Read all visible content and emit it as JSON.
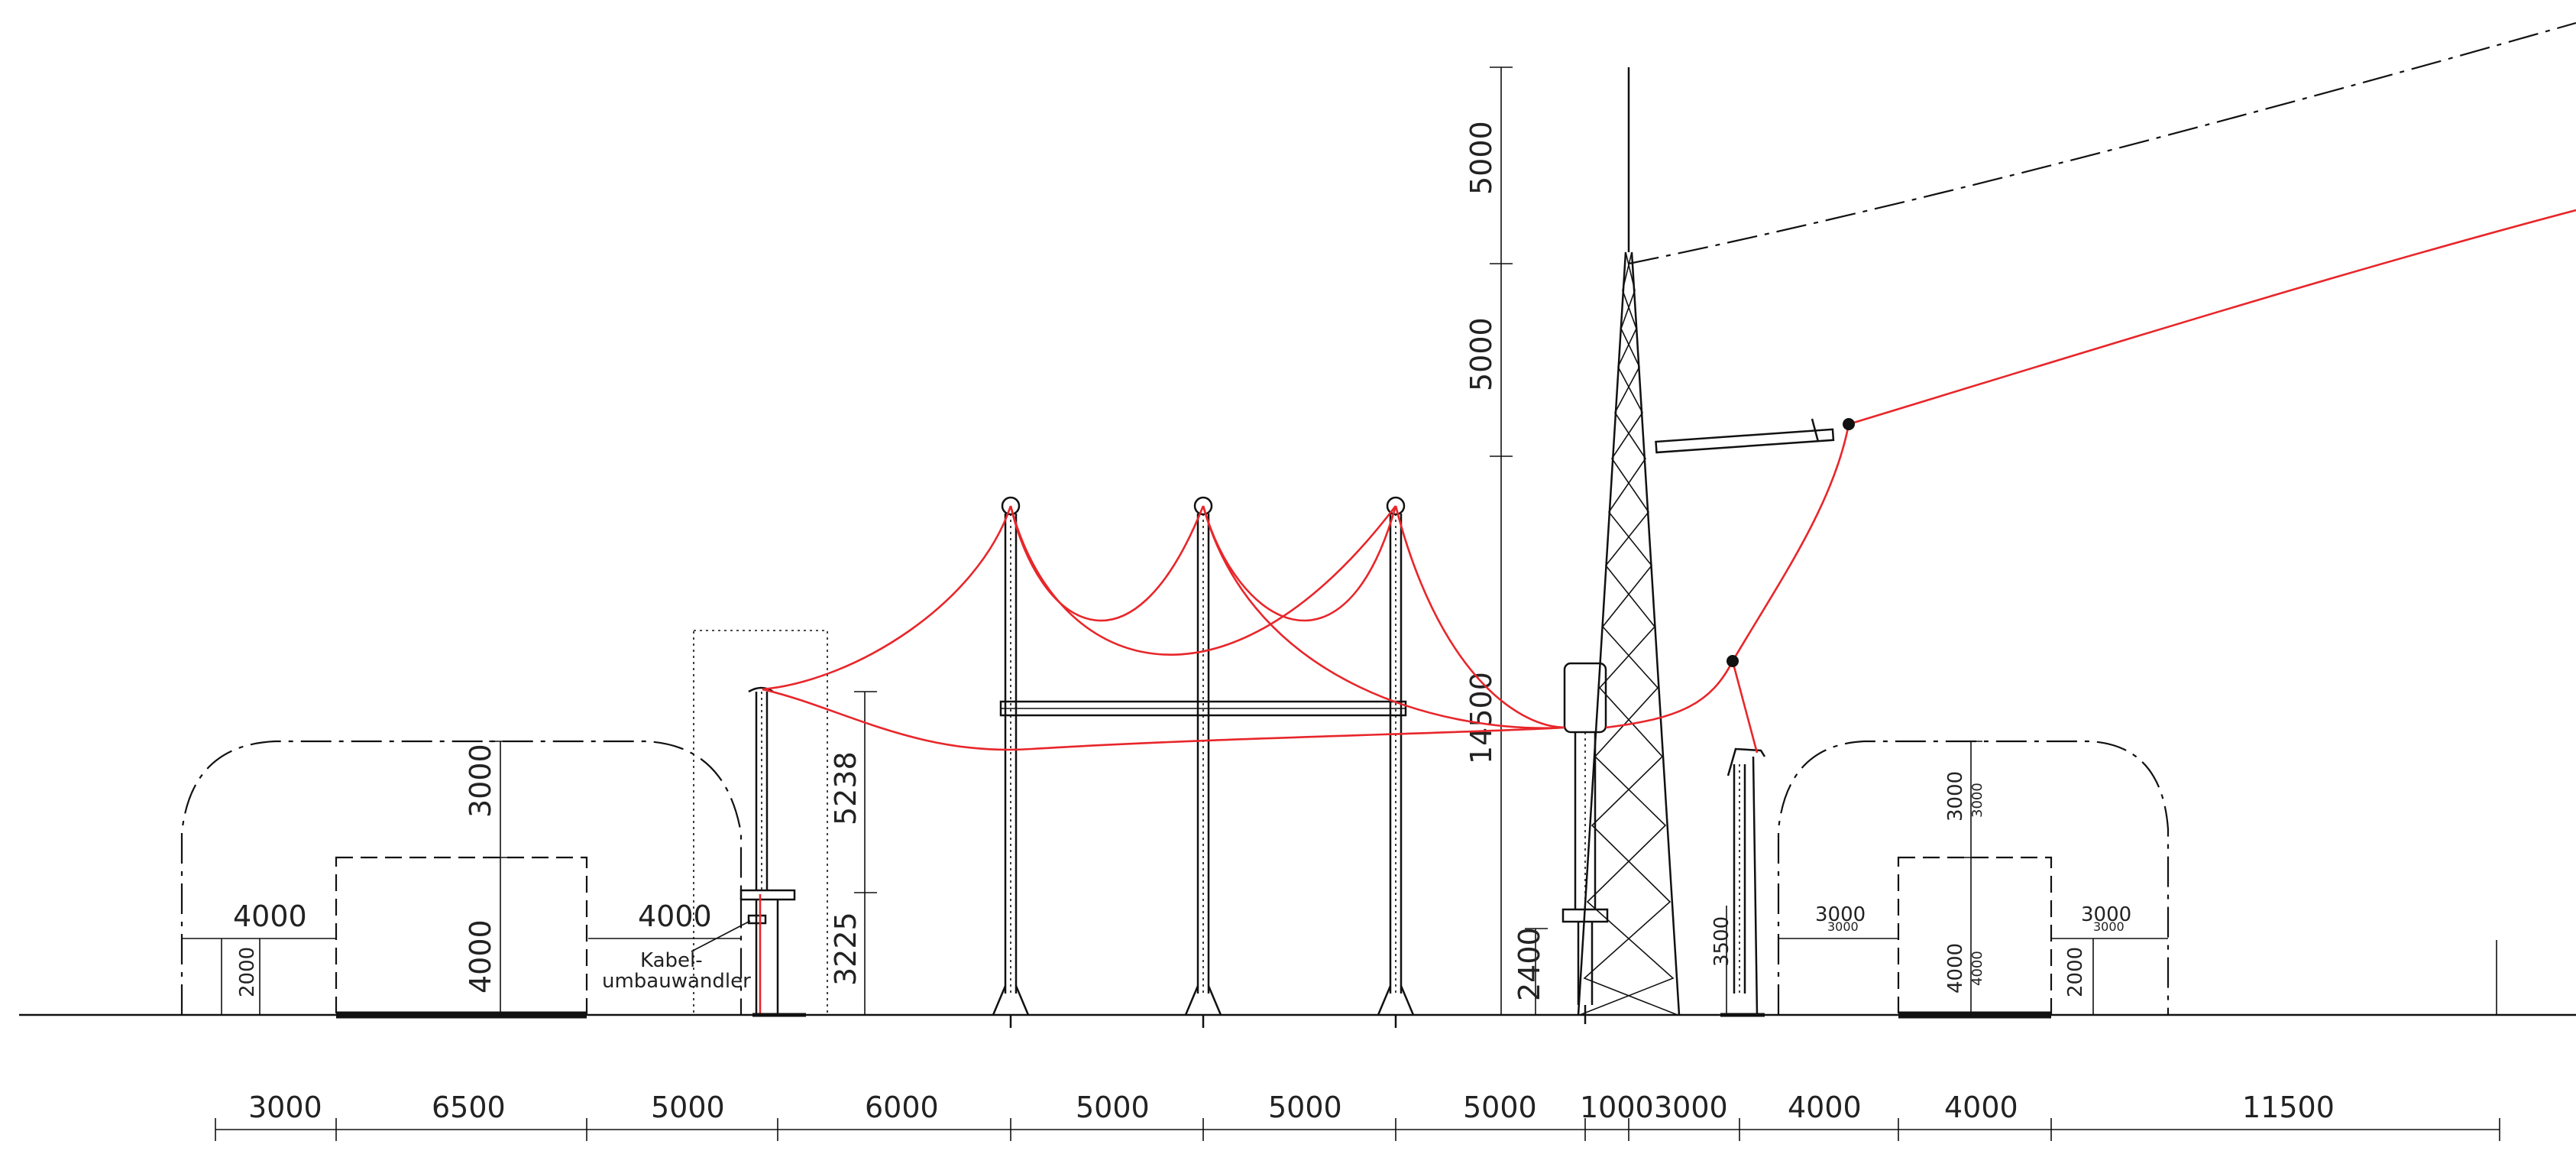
{
  "bottom_dimensions": [
    "3000",
    "6500",
    "5000",
    "6000",
    "5000",
    "5000",
    "5000",
    "1000",
    "3000",
    "4000",
    "4000",
    "11500"
  ],
  "tower_dimensions": [
    "5000",
    "5000",
    "14500"
  ],
  "left_clearance": {
    "height_upper": "3000",
    "height_lower": "4000",
    "width": "4000",
    "small_height": "2000",
    "side_width": "4000"
  },
  "right_clearance": {
    "height_upper": "3000",
    "height_upper_small": "3000",
    "height_lower": "4000",
    "height_lower_small": "4000",
    "width_left": "3000",
    "width_left_small": "3000",
    "width_right": "3000",
    "width_right_small": "3000",
    "small_height": "2000"
  },
  "cable_post": {
    "label_line1": "Kabel-",
    "label_line2": "umbauwandler",
    "dim_upper": "5238",
    "dim_lower": "3225"
  },
  "tower_base_dim": "2400",
  "arrester_dim": "3500",
  "colors": {
    "conductor": "#e8262a",
    "line": "#111111"
  }
}
